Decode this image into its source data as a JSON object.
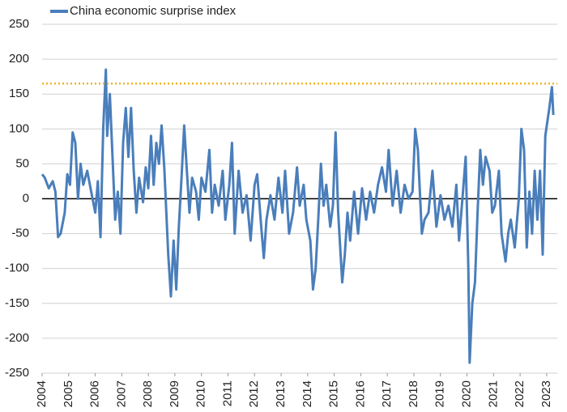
{
  "chart_data": {
    "type": "line",
    "xlim": [
      2004,
      2023.4
    ],
    "xticks": [
      2004,
      2005,
      2006,
      2007,
      2008,
      2009,
      2010,
      2011,
      2012,
      2013,
      2014,
      2015,
      2016,
      2017,
      2018,
      2019,
      2020,
      2021,
      2022,
      2023
    ],
    "ylim": [
      -250,
      250
    ],
    "yticks": [
      -250,
      -200,
      -150,
      -100,
      -50,
      0,
      50,
      100,
      150,
      200,
      250
    ],
    "grid": true,
    "zero_line_color": "#000000",
    "reference_line": {
      "value": 165,
      "color": "#f0b323"
    },
    "legend": "top-left",
    "x": [
      2004.0,
      2004.1,
      2004.25,
      2004.4,
      2004.5,
      2004.6,
      2004.7,
      2004.85,
      2004.95,
      2005.05,
      2005.15,
      2005.25,
      2005.35,
      2005.45,
      2005.55,
      2005.7,
      2005.85,
      2006.0,
      2006.1,
      2006.2,
      2006.3,
      2006.4,
      2006.45,
      2006.55,
      2006.65,
      2006.75,
      2006.85,
      2006.95,
      2007.05,
      2007.15,
      2007.25,
      2007.35,
      2007.45,
      2007.55,
      2007.65,
      2007.8,
      2007.9,
      2008.0,
      2008.1,
      2008.2,
      2008.3,
      2008.4,
      2008.5,
      2008.6,
      2008.75,
      2008.85,
      2008.95,
      2009.05,
      2009.15,
      2009.25,
      2009.35,
      2009.45,
      2009.55,
      2009.65,
      2009.8,
      2009.9,
      2010.0,
      2010.15,
      2010.3,
      2010.4,
      2010.5,
      2010.65,
      2010.8,
      2010.9,
      2011.05,
      2011.15,
      2011.25,
      2011.4,
      2011.55,
      2011.7,
      2011.85,
      2012.0,
      2012.1,
      2012.25,
      2012.35,
      2012.45,
      2012.6,
      2012.75,
      2012.9,
      2013.05,
      2013.15,
      2013.3,
      2013.45,
      2013.6,
      2013.7,
      2013.85,
      2013.95,
      2014.1,
      2014.2,
      2014.3,
      2014.4,
      2014.5,
      2014.6,
      2014.7,
      2014.85,
      2014.95,
      2015.05,
      2015.15,
      2015.3,
      2015.4,
      2015.5,
      2015.6,
      2015.75,
      2015.9,
      2016.05,
      2016.2,
      2016.35,
      2016.5,
      2016.65,
      2016.8,
      2016.95,
      2017.05,
      2017.2,
      2017.35,
      2017.5,
      2017.65,
      2017.8,
      2017.95,
      2018.05,
      2018.15,
      2018.3,
      2018.4,
      2018.55,
      2018.7,
      2018.85,
      2019.0,
      2019.15,
      2019.3,
      2019.45,
      2019.6,
      2019.7,
      2019.85,
      2019.95,
      2020.05,
      2020.1,
      2020.2,
      2020.3,
      2020.4,
      2020.5,
      2020.6,
      2020.7,
      2020.85,
      2020.95,
      2021.05,
      2021.2,
      2021.3,
      2021.45,
      2021.55,
      2021.65,
      2021.8,
      2021.95,
      2022.05,
      2022.15,
      2022.25,
      2022.35,
      2022.45,
      2022.55,
      2022.65,
      2022.75,
      2022.85,
      2022.95,
      2023.1,
      2023.2,
      2023.25
    ],
    "series": [
      {
        "name": "China economic surprise index",
        "color": "#4a7ebb",
        "values": [
          35,
          30,
          15,
          25,
          10,
          -55,
          -50,
          -20,
          35,
          20,
          95,
          80,
          0,
          50,
          20,
          40,
          10,
          -20,
          25,
          -55,
          100,
          185,
          90,
          150,
          60,
          -30,
          10,
          -50,
          80,
          130,
          60,
          130,
          40,
          -20,
          30,
          -5,
          45,
          15,
          90,
          20,
          80,
          50,
          105,
          45,
          -80,
          -140,
          -60,
          -130,
          -40,
          30,
          105,
          40,
          -20,
          30,
          10,
          -30,
          30,
          10,
          70,
          -20,
          20,
          -10,
          40,
          -30,
          20,
          80,
          -50,
          40,
          -20,
          5,
          -60,
          20,
          35,
          -40,
          -85,
          -30,
          5,
          -30,
          30,
          -20,
          40,
          -50,
          -20,
          45,
          -10,
          20,
          -30,
          -60,
          -130,
          -100,
          -30,
          50,
          -10,
          20,
          -40,
          -10,
          95,
          -20,
          -120,
          -80,
          -20,
          -60,
          10,
          -50,
          15,
          -30,
          10,
          -20,
          20,
          45,
          10,
          70,
          -10,
          40,
          -20,
          20,
          0,
          10,
          100,
          70,
          -50,
          -30,
          -20,
          40,
          -40,
          5,
          -30,
          -10,
          -40,
          20,
          -60,
          10,
          60,
          -100,
          -235,
          -150,
          -120,
          -20,
          70,
          20,
          60,
          40,
          -20,
          -10,
          40,
          -50,
          -90,
          -50,
          -30,
          -70,
          0,
          100,
          70,
          -70,
          10,
          -50,
          40,
          -30,
          40,
          -80,
          90,
          130,
          160,
          120
        ]
      }
    ]
  }
}
